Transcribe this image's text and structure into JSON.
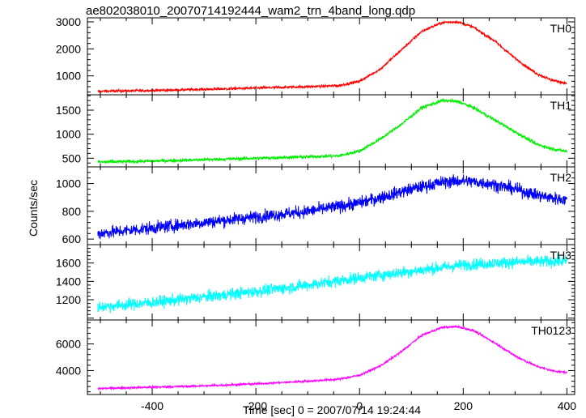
{
  "chart_data": {
    "type": "line",
    "title": "ae802038010_20070714192444_wam2_trn_4band_long.qdp",
    "xlabel": "Time [sec] 0 = 2007/07/14 19:24:44",
    "ylabel": "Counts/sec",
    "xlim": [
      -525,
      415
    ],
    "x_ticks": [
      "-400",
      "-200",
      "0",
      "200",
      "400"
    ],
    "x_tick_values": [
      -400,
      -200,
      0,
      200,
      400
    ],
    "grid": false,
    "panels": [
      {
        "name": "TH0",
        "color": "#ff0000",
        "ylim": [
          300,
          3150
        ],
        "y_ticks": [
          "1000",
          "2000",
          "3000"
        ],
        "y_tick_values": [
          1000,
          2000,
          3000
        ],
        "noise": 35,
        "x": [
          -505,
          -400,
          -300,
          -200,
          -100,
          -40,
          0,
          40,
          80,
          120,
          160,
          190,
          220,
          260,
          300,
          340,
          370,
          400
        ],
        "y": [
          430,
          460,
          500,
          550,
          600,
          640,
          800,
          1250,
          1950,
          2650,
          2980,
          3000,
          2800,
          2300,
          1650,
          1100,
          850,
          720
        ]
      },
      {
        "name": "TH1",
        "color": "#00ee00",
        "ylim": [
          320,
          1820
        ],
        "y_ticks": [
          "500",
          "1000",
          "1500"
        ],
        "y_tick_values": [
          500,
          1000,
          1500
        ],
        "noise": 25,
        "x": [
          -505,
          -400,
          -300,
          -200,
          -100,
          -40,
          0,
          40,
          80,
          120,
          160,
          190,
          220,
          260,
          300,
          340,
          370,
          400
        ],
        "y": [
          420,
          440,
          470,
          500,
          530,
          550,
          650,
          900,
          1200,
          1550,
          1700,
          1680,
          1550,
          1300,
          1050,
          800,
          700,
          640
        ]
      },
      {
        "name": "TH2",
        "color": "#0000ff",
        "ylim": [
          560,
          1120
        ],
        "y_ticks": [
          "600",
          "800",
          "1000"
        ],
        "y_tick_values": [
          600,
          800,
          1000
        ],
        "noise": 32,
        "x": [
          -505,
          -400,
          -300,
          -200,
          -100,
          0,
          100,
          160,
          200,
          250,
          300,
          350,
          400
        ],
        "y": [
          640,
          680,
          720,
          760,
          800,
          860,
          960,
          1010,
          1020,
          1000,
          960,
          910,
          880
        ]
      },
      {
        "name": "TH3",
        "color": "#00ffff",
        "ylim": [
          980,
          1800
        ],
        "y_ticks": [
          "1200",
          "1400",
          "1600"
        ],
        "y_tick_values": [
          1200,
          1400,
          1600
        ],
        "noise": 45,
        "x": [
          -505,
          -400,
          -300,
          -200,
          -100,
          0,
          100,
          200,
          300,
          400
        ],
        "y": [
          1120,
          1170,
          1230,
          1290,
          1360,
          1440,
          1510,
          1580,
          1610,
          1620
        ]
      },
      {
        "name": "TH0123",
        "color": "#ff00ff",
        "ylim": [
          2200,
          7800
        ],
        "y_ticks": [
          "4000",
          "6000"
        ],
        "y_tick_values": [
          4000,
          6000
        ],
        "noise": 60,
        "x": [
          -505,
          -400,
          -300,
          -200,
          -100,
          -40,
          0,
          40,
          80,
          120,
          160,
          190,
          220,
          260,
          300,
          340,
          370,
          400
        ],
        "y": [
          2650,
          2750,
          2850,
          3000,
          3200,
          3350,
          3650,
          4350,
          5400,
          6650,
          7250,
          7300,
          7000,
          6100,
          5100,
          4350,
          4000,
          3850
        ]
      }
    ]
  }
}
